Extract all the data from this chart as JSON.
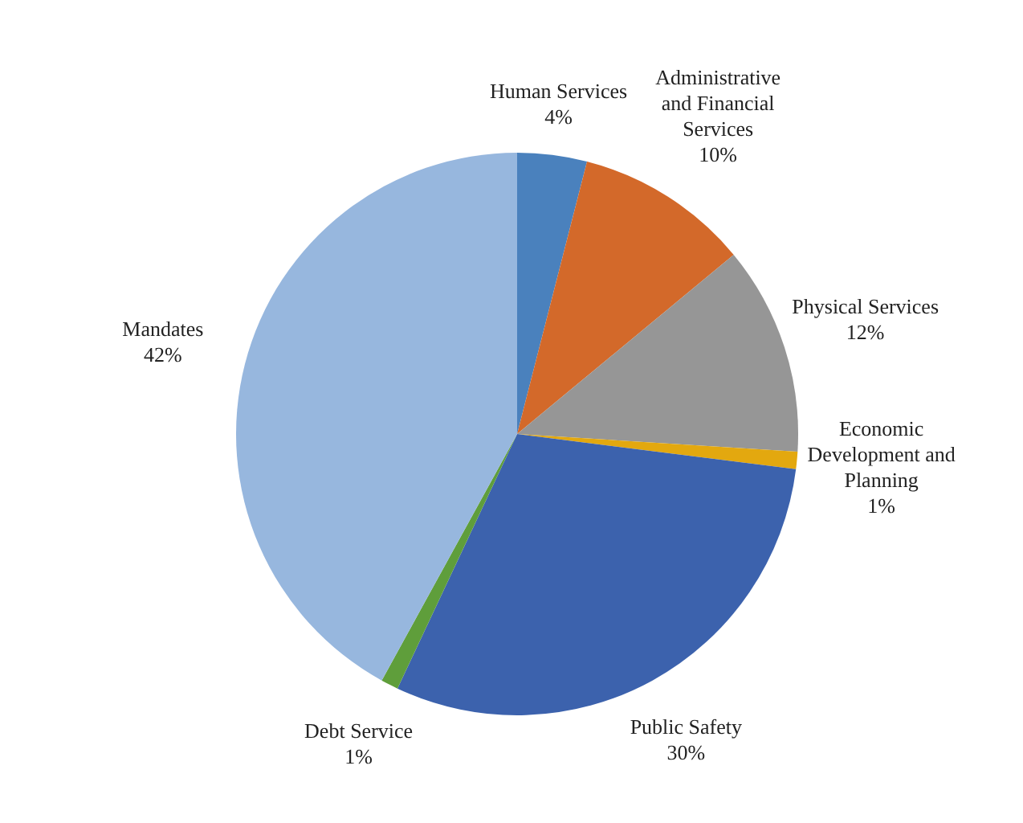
{
  "chart_data": {
    "type": "pie",
    "categories": [
      "Human Services",
      "Administrative and Financial Services",
      "Physical Services",
      "Economic Development and Planning",
      "Public Safety",
      "Debt Service",
      "Mandates"
    ],
    "values": [
      4,
      10,
      12,
      1,
      30,
      1,
      42
    ],
    "colors": [
      "#4a81bd",
      "#d3692a",
      "#969696",
      "#e3a80f",
      "#3c62ad",
      "#5f9e3b",
      "#97b7de"
    ],
    "value_labels": [
      "4%",
      "10%",
      "12%",
      "1%",
      "30%",
      "1%",
      "42%"
    ],
    "legend": false
  }
}
